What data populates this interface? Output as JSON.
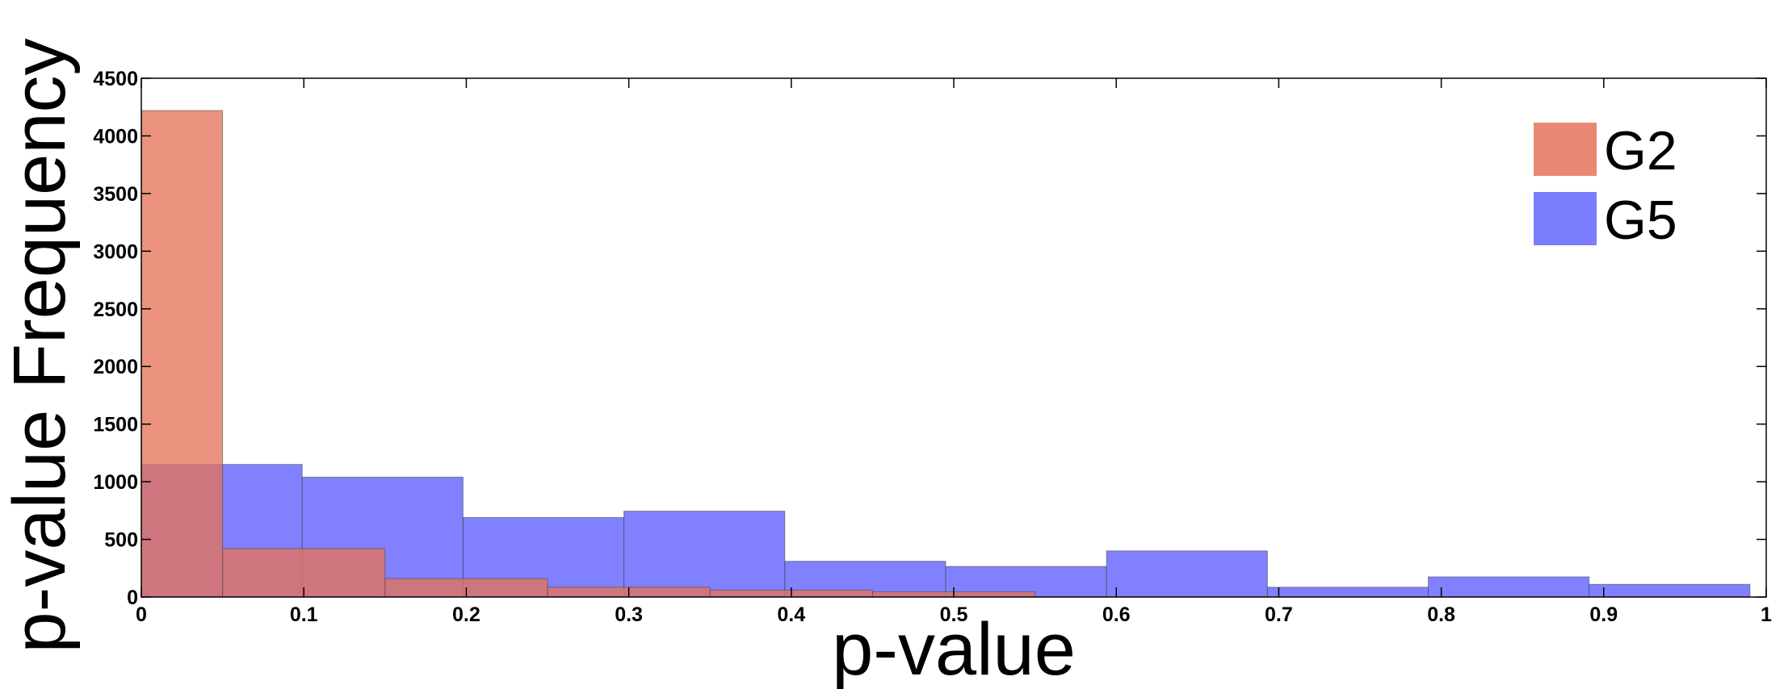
{
  "chart_data": {
    "type": "bar",
    "subtype": "overlapping histogram",
    "title": "",
    "xlabel": "p-value",
    "ylabel": "p-value Frequency",
    "xlim": [
      0,
      1
    ],
    "ylim": [
      0,
      4500
    ],
    "xticks": [
      "0",
      "0.1",
      "0.2",
      "0.3",
      "0.4",
      "0.5",
      "0.6",
      "0.7",
      "0.8",
      "0.9",
      "1"
    ],
    "yticks": [
      "0",
      "500",
      "1000",
      "1500",
      "2000",
      "2500",
      "3000",
      "3500",
      "4000",
      "4500"
    ],
    "grid": false,
    "legend": "top-right",
    "series": [
      {
        "name": "G2",
        "color": "#e4735a",
        "bins": [
          {
            "x0": 0.0,
            "x1": 0.05,
            "value": 4220
          },
          {
            "x0": 0.05,
            "x1": 0.15,
            "value": 420
          },
          {
            "x0": 0.15,
            "x1": 0.25,
            "value": 160
          },
          {
            "x0": 0.25,
            "x1": 0.35,
            "value": 85
          },
          {
            "x0": 0.35,
            "x1": 0.45,
            "value": 60
          },
          {
            "x0": 0.45,
            "x1": 0.55,
            "value": 45
          }
        ]
      },
      {
        "name": "G5",
        "color": "#5050ff",
        "bins": [
          {
            "x0": 0.0,
            "x1": 0.099,
            "value": 1150
          },
          {
            "x0": 0.099,
            "x1": 0.198,
            "value": 1040
          },
          {
            "x0": 0.198,
            "x1": 0.297,
            "value": 690
          },
          {
            "x0": 0.297,
            "x1": 0.396,
            "value": 745
          },
          {
            "x0": 0.396,
            "x1": 0.495,
            "value": 310
          },
          {
            "x0": 0.495,
            "x1": 0.594,
            "value": 265
          },
          {
            "x0": 0.594,
            "x1": 0.693,
            "value": 400
          },
          {
            "x0": 0.693,
            "x1": 0.792,
            "value": 85
          },
          {
            "x0": 0.792,
            "x1": 0.891,
            "value": 175
          },
          {
            "x0": 0.891,
            "x1": 0.99,
            "value": 110
          }
        ]
      }
    ]
  }
}
